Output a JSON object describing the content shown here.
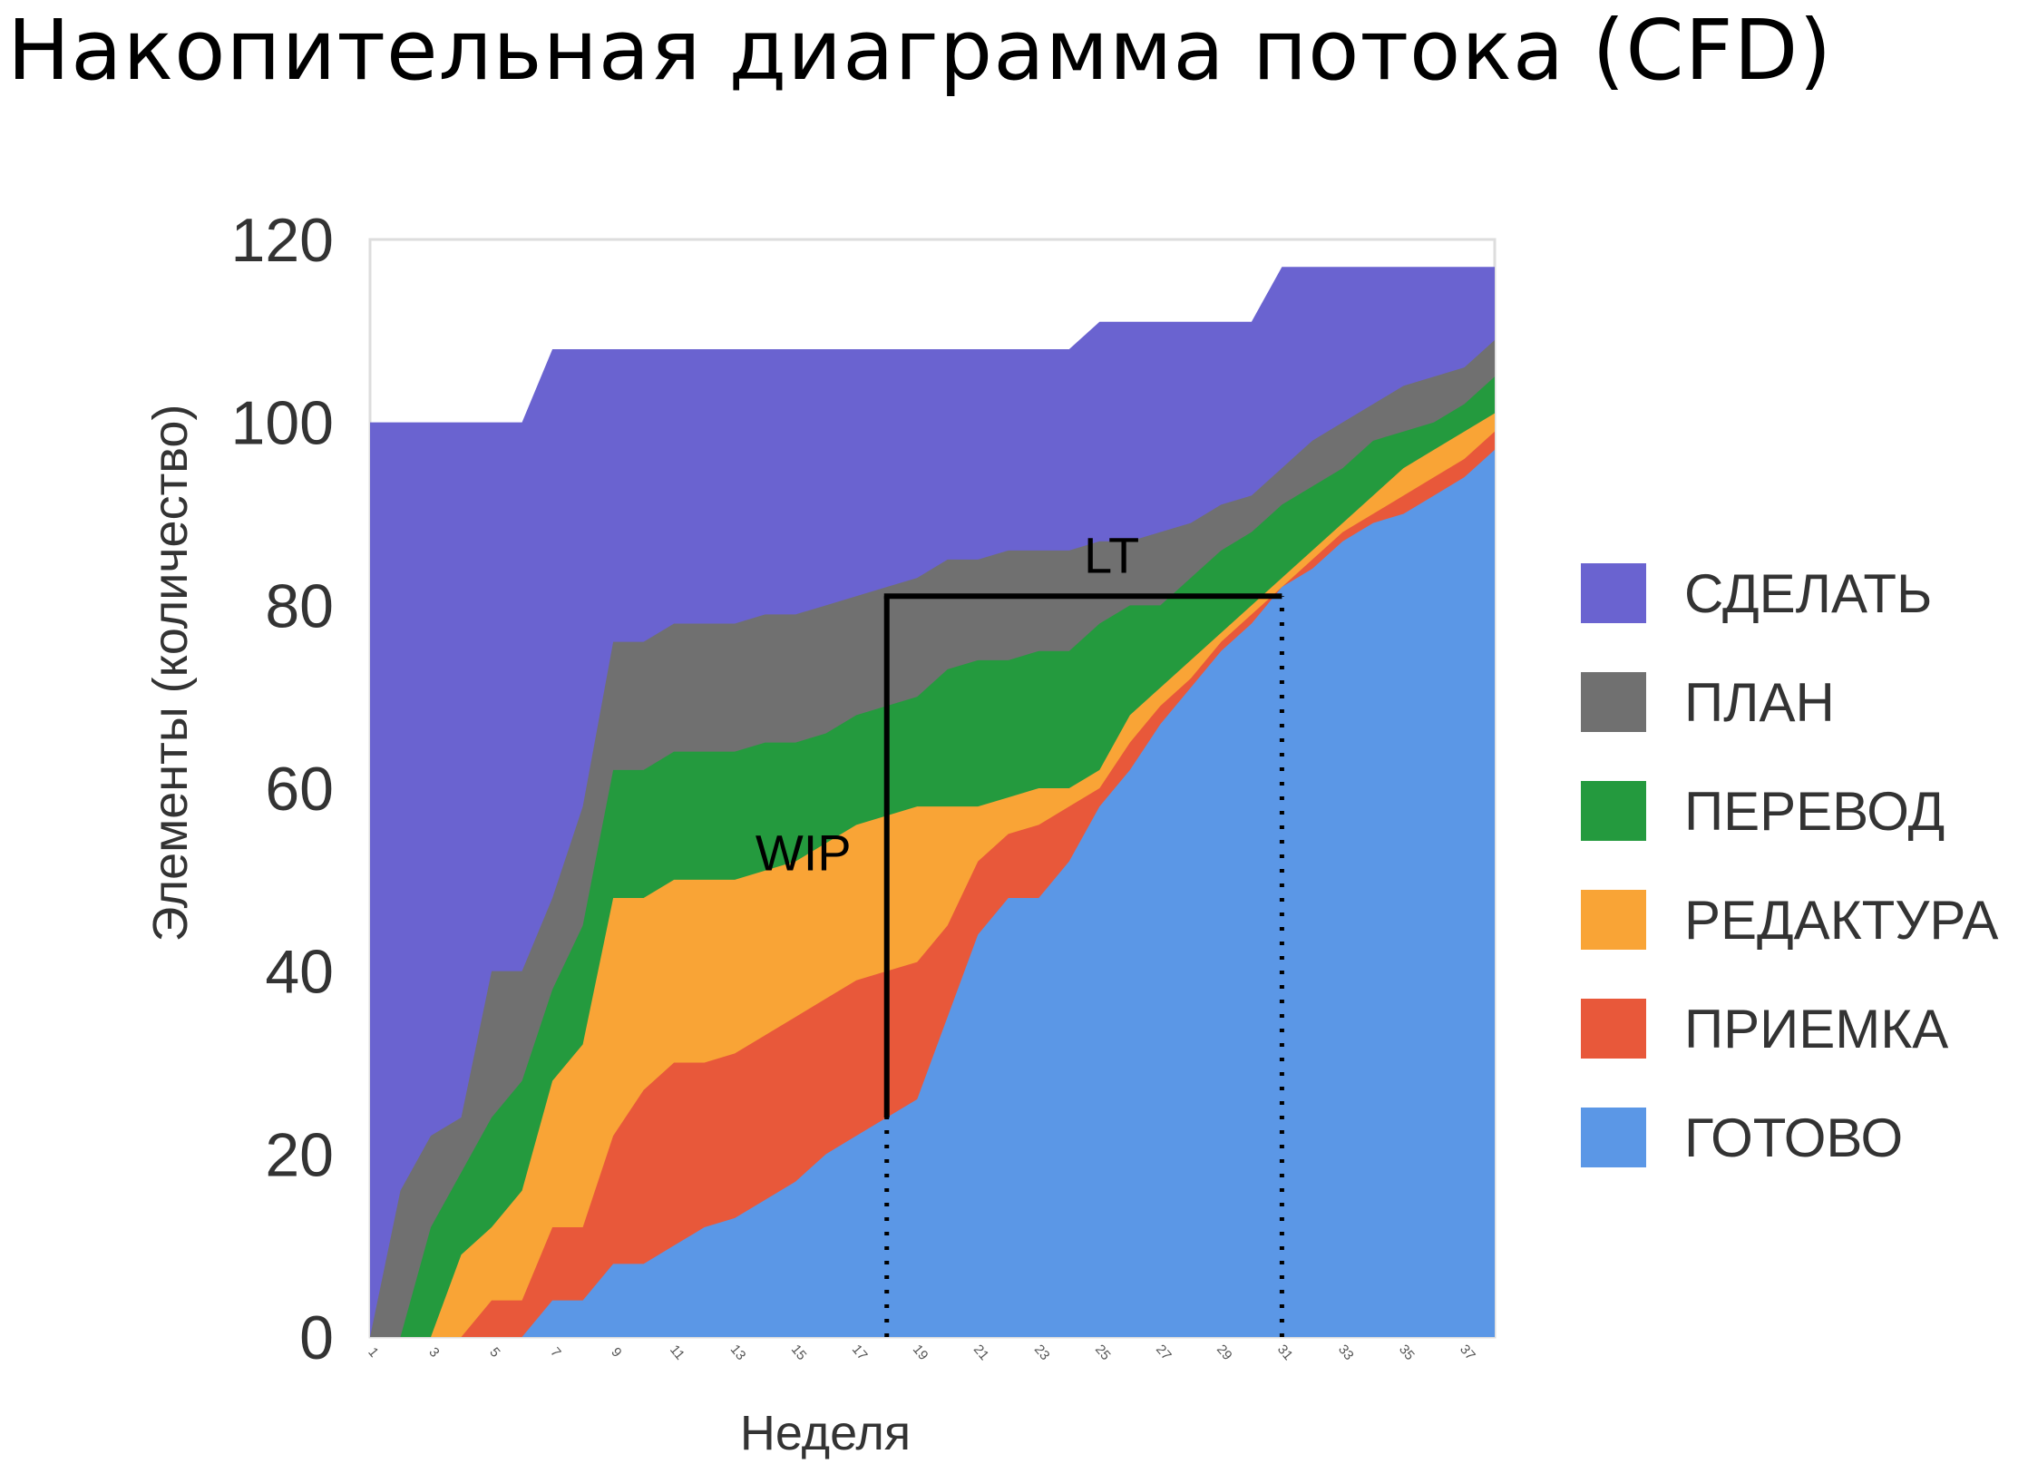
{
  "page": {
    "title": "Накопительная диаграмма потока (CFD)"
  },
  "chart_data": {
    "type": "area",
    "stacked": true,
    "xlabel": "Неделя",
    "ylabel": "Элементы (количество)",
    "ylim": [
      0,
      120
    ],
    "xlim": [
      1,
      38
    ],
    "yticks": [
      0,
      20,
      40,
      60,
      80,
      100,
      120
    ],
    "xticks": [
      1,
      3,
      5,
      7,
      9,
      11,
      13,
      15,
      17,
      19,
      21,
      23,
      25,
      27,
      29,
      31,
      33,
      35,
      37
    ],
    "grid": false,
    "legend_position": "right",
    "x": [
      1,
      2,
      3,
      4,
      5,
      6,
      7,
      8,
      9,
      10,
      11,
      12,
      13,
      14,
      15,
      16,
      17,
      18,
      19,
      20,
      21,
      22,
      23,
      24,
      25,
      26,
      27,
      28,
      29,
      30,
      31,
      32,
      33,
      34,
      35,
      36,
      37,
      38
    ],
    "series": [
      {
        "name": "СДЕЛАТЬ",
        "color": "#6a63d0",
        "cumulative": [
          100,
          100,
          100,
          100,
          100,
          100,
          108,
          108,
          108,
          108,
          108,
          108,
          108,
          108,
          108,
          108,
          108,
          108,
          108,
          108,
          108,
          108,
          108,
          108,
          111,
          111,
          111,
          111,
          111,
          111,
          117,
          117,
          117,
          117,
          117,
          117,
          117,
          117
        ]
      },
      {
        "name": "ПЛАН",
        "color": "#707070",
        "cumulative": [
          0,
          16,
          22,
          24,
          40,
          40,
          48,
          58,
          76,
          76,
          78,
          78,
          78,
          79,
          79,
          80,
          81,
          82,
          83,
          85,
          85,
          86,
          86,
          86,
          87,
          87,
          88,
          89,
          91,
          92,
          95,
          98,
          100,
          102,
          104,
          105,
          106,
          109
        ]
      },
      {
        "name": "ПЕРЕВОД",
        "color": "#249a3e",
        "cumulative": [
          0,
          0,
          12,
          18,
          24,
          28,
          38,
          45,
          62,
          62,
          64,
          64,
          64,
          65,
          65,
          66,
          68,
          69,
          70,
          73,
          74,
          74,
          75,
          75,
          78,
          80,
          80,
          83,
          86,
          88,
          91,
          93,
          95,
          98,
          99,
          100,
          102,
          105
        ]
      },
      {
        "name": "РЕДАКТУРА",
        "color": "#f9a436",
        "cumulative": [
          0,
          0,
          0,
          9,
          12,
          16,
          28,
          32,
          48,
          48,
          50,
          50,
          50,
          51,
          52,
          54,
          56,
          57,
          58,
          58,
          58,
          59,
          60,
          60,
          62,
          68,
          71,
          74,
          77,
          80,
          83,
          86,
          89,
          92,
          95,
          97,
          99,
          101
        ]
      },
      {
        "name": "ПРИЕМКА",
        "color": "#e8583a",
        "cumulative": [
          0,
          0,
          0,
          0,
          4,
          4,
          12,
          12,
          22,
          27,
          30,
          30,
          31,
          33,
          35,
          37,
          39,
          40,
          41,
          45,
          52,
          55,
          56,
          58,
          60,
          65,
          69,
          72,
          76,
          79,
          82,
          85,
          88,
          90,
          92,
          94,
          96,
          99
        ]
      },
      {
        "name": "ГОТОВО",
        "color": "#5b97e6",
        "cumulative": [
          0,
          0,
          0,
          0,
          0,
          0,
          4,
          4,
          8,
          8,
          10,
          12,
          13,
          15,
          17,
          20,
          22,
          24,
          26,
          35,
          44,
          48,
          48,
          52,
          58,
          62,
          67,
          71,
          75,
          78,
          82,
          84,
          87,
          89,
          90,
          92,
          94,
          97
        ]
      }
    ],
    "annotations": [
      {
        "text": "WIP",
        "x": 18,
        "y_from": 24,
        "y_to": 81
      },
      {
        "text": "LT",
        "y": 81,
        "x_from": 18,
        "x_to": 31
      }
    ],
    "guides": [
      {
        "style": "dotted",
        "x": 18
      },
      {
        "style": "dotted",
        "x": 31
      }
    ]
  }
}
